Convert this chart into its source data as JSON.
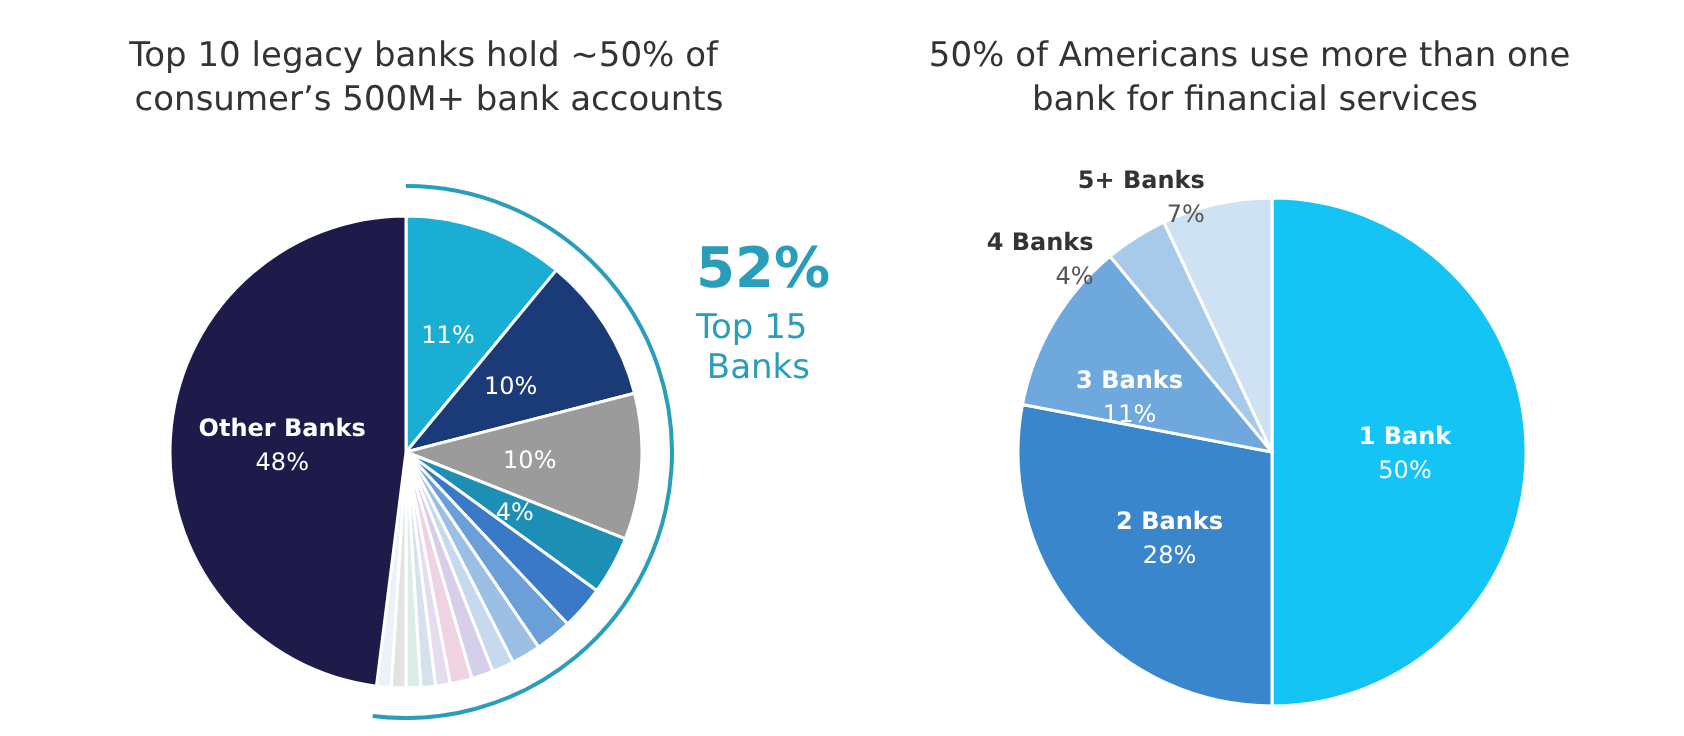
{
  "chart_data": [
    {
      "type": "pie",
      "title": "Top 10 legacy banks hold ~50% of consumer’s 500M+ bank accounts",
      "categories": [
        null,
        null,
        null,
        null,
        null,
        null,
        null,
        null,
        null,
        null,
        null,
        null,
        null,
        null,
        null,
        "Other Banks"
      ],
      "values": [
        11,
        10,
        10,
        4,
        3,
        2.5,
        2,
        1.5,
        1.5,
        1.5,
        1,
        1,
        1,
        1,
        1,
        48
      ],
      "value_labels": [
        "11%",
        "10%",
        "10%",
        "4%",
        null,
        null,
        null,
        null,
        null,
        null,
        null,
        null,
        null,
        null,
        null,
        "48%"
      ],
      "colors": [
        "#1aaed4",
        "#1b3a78",
        "#9b9b9b",
        "#1d8fb5",
        "#3a78c8",
        "#6a9fd8",
        "#9cc0e4",
        "#c6d9ee",
        "#d6cfe9",
        "#f0d3e2",
        "#e4dcef",
        "#d5e2ee",
        "#dcece6",
        "#e2e2e2",
        "#edf2f8",
        "#1e1a4a"
      ],
      "annotations": [
        "52%",
        "Top 15 Banks"
      ]
    },
    {
      "type": "pie",
      "title": "50% of Americans use more than one bank for financial services",
      "categories": [
        "1 Bank",
        "2 Banks",
        "3 Banks",
        "4 Banks",
        "5+ Banks"
      ],
      "values": [
        50,
        28,
        11,
        4,
        7
      ],
      "value_labels": [
        "50%",
        "28%",
        "11%",
        "4%",
        "7%"
      ],
      "colors": [
        "#13c4f5",
        "#3a86cc",
        "#6ea8dc",
        "#a7c9ea",
        "#cfe2f3"
      ]
    }
  ]
}
